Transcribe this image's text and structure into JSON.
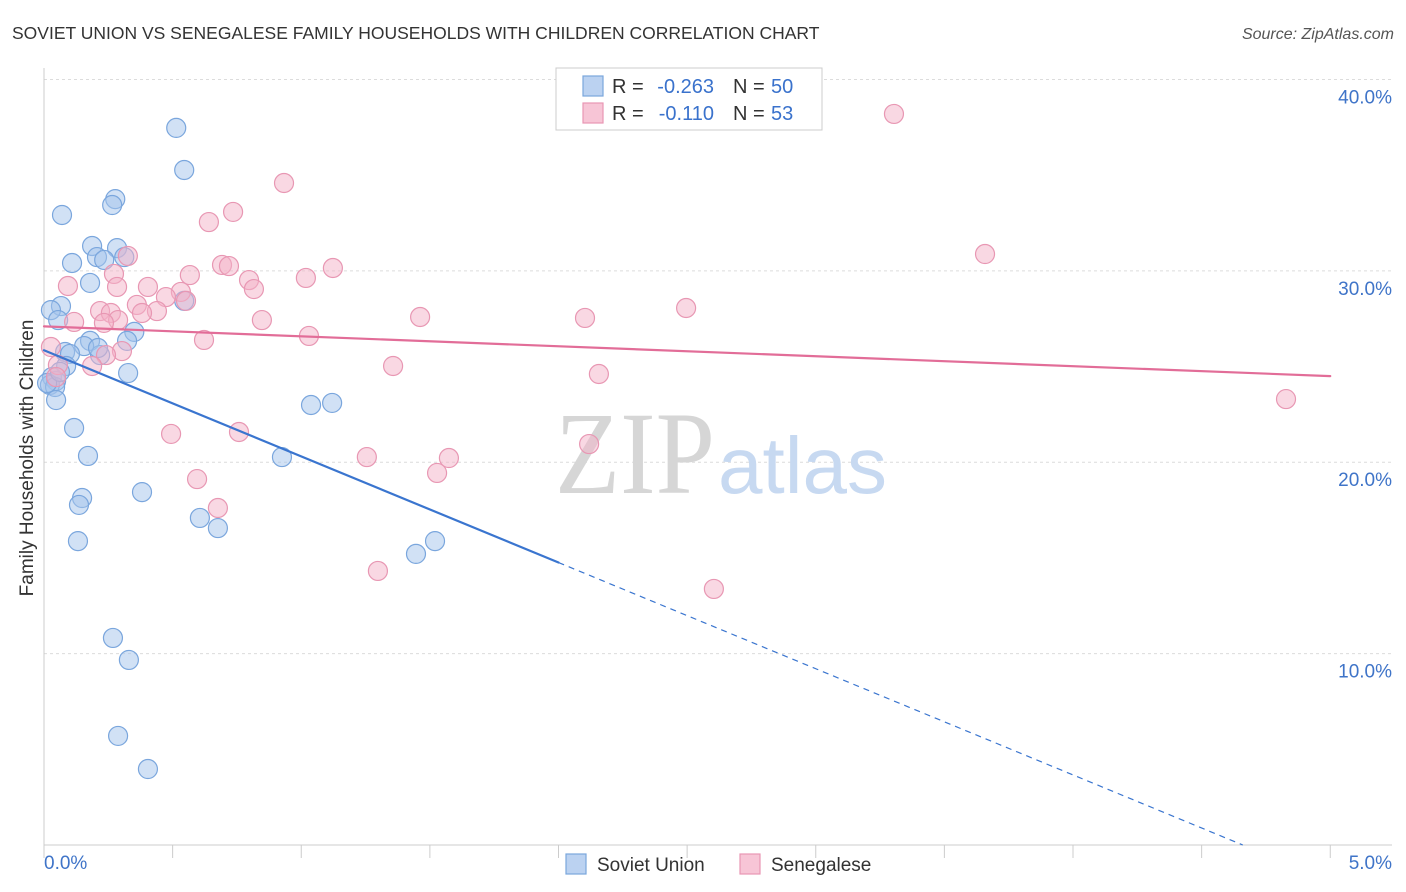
{
  "chart_data": {
    "type": "scatter",
    "title": "SOVIET UNION VS SENEGALESE FAMILY HOUSEHOLDS WITH CHILDREN CORRELATION CHART",
    "source": "Source: ZipAtlas.com",
    "ylabel": "Family Households with Children",
    "xlim": [
      0,
      5.24
    ],
    "ylim": [
      0,
      40.6
    ],
    "grid": true,
    "x_minor_ticks": [
      0,
      0.5,
      1.0,
      1.5,
      2.0,
      2.5,
      3.0,
      3.5,
      4.0,
      4.5,
      5.0
    ],
    "x_tick_labels": [
      {
        "value": 0,
        "label": "0.0%"
      },
      {
        "value": 5.0,
        "label": "5.0%"
      }
    ],
    "y_ticks": [
      {
        "value": 10,
        "label": "10.0%"
      },
      {
        "value": 20,
        "label": "20.0%"
      },
      {
        "value": 30,
        "label": "30.0%"
      },
      {
        "value": 40,
        "label": "40.0%"
      }
    ],
    "legend_stats": [
      {
        "r_label": "R =",
        "r": "-0.263",
        "n_label": "N =",
        "n": "50"
      },
      {
        "r_label": "R =",
        "r": "-0.110",
        "n_label": "N =",
        "n": "53"
      }
    ],
    "series": [
      {
        "name": "Soviet Union",
        "color": "#7aa6dd",
        "fill": "#a4c3ec",
        "trend_color": "#3a75cf",
        "points": [
          [
            0.514,
            37.47
          ],
          [
            0.545,
            35.27
          ],
          [
            0.277,
            33.75
          ],
          [
            0.265,
            33.44
          ],
          [
            0.07,
            32.92
          ],
          [
            0.187,
            31.3
          ],
          [
            0.284,
            31.19
          ],
          [
            0.109,
            30.41
          ],
          [
            0.206,
            30.72
          ],
          [
            0.234,
            30.57
          ],
          [
            0.312,
            30.72
          ],
          [
            0.179,
            29.37
          ],
          [
            0.066,
            28.16
          ],
          [
            0.027,
            27.95
          ],
          [
            0.055,
            27.43
          ],
          [
            0.545,
            28.43
          ],
          [
            0.351,
            26.81
          ],
          [
            0.179,
            26.34
          ],
          [
            0.156,
            26.07
          ],
          [
            0.323,
            26.34
          ],
          [
            0.082,
            25.76
          ],
          [
            0.101,
            25.66
          ],
          [
            0.218,
            25.6
          ],
          [
            0.086,
            25.03
          ],
          [
            0.031,
            24.45
          ],
          [
            0.047,
            24.25
          ],
          [
            0.327,
            24.66
          ],
          [
            0.023,
            24.04
          ],
          [
            0.043,
            23.93
          ],
          [
            0.047,
            23.25
          ],
          [
            1.038,
            22.99
          ],
          [
            1.12,
            23.1
          ],
          [
            0.117,
            21.79
          ],
          [
            0.171,
            20.33
          ],
          [
            0.925,
            20.27
          ],
          [
            0.381,
            18.44
          ],
          [
            0.148,
            18.13
          ],
          [
            0.136,
            17.77
          ],
          [
            0.606,
            17.09
          ],
          [
            0.676,
            16.56
          ],
          [
            0.132,
            15.88
          ],
          [
            1.52,
            15.88
          ],
          [
            1.446,
            15.21
          ],
          [
            0.268,
            10.82
          ],
          [
            0.33,
            9.67
          ],
          [
            0.288,
            5.7
          ],
          [
            0.404,
            3.97
          ],
          [
            0.012,
            24.14
          ],
          [
            0.21,
            25.97
          ],
          [
            0.062,
            24.72
          ]
        ],
        "trend_solid": [
          [
            0,
            25.85
          ],
          [
            2.0,
            14.76
          ]
        ],
        "trend_dashed": [
          [
            2.0,
            14.76
          ],
          [
            4.66,
            0
          ]
        ]
      },
      {
        "name": "Senegalese",
        "color": "#e897b3",
        "fill": "#f4b1c8",
        "trend_color": "#e26d98",
        "points": [
          [
            3.304,
            38.2
          ],
          [
            0.933,
            34.59
          ],
          [
            0.735,
            33.08
          ],
          [
            0.641,
            32.55
          ],
          [
            3.658,
            30.88
          ],
          [
            0.326,
            30.78
          ],
          [
            0.692,
            30.31
          ],
          [
            0.719,
            30.25
          ],
          [
            1.123,
            30.15
          ],
          [
            0.567,
            29.78
          ],
          [
            1.018,
            29.63
          ],
          [
            0.797,
            29.52
          ],
          [
            0.272,
            29.84
          ],
          [
            0.093,
            29.21
          ],
          [
            0.404,
            29.16
          ],
          [
            0.532,
            28.9
          ],
          [
            0.816,
            29.05
          ],
          [
            0.284,
            29.16
          ],
          [
            0.552,
            28.43
          ],
          [
            0.361,
            28.22
          ],
          [
            0.474,
            28.63
          ],
          [
            0.439,
            27.9
          ],
          [
            0.218,
            27.9
          ],
          [
            0.26,
            27.8
          ],
          [
            0.381,
            27.8
          ],
          [
            2.496,
            28.06
          ],
          [
            1.462,
            27.59
          ],
          [
            2.103,
            27.54
          ],
          [
            0.847,
            27.43
          ],
          [
            0.117,
            27.33
          ],
          [
            0.288,
            27.43
          ],
          [
            0.233,
            27.28
          ],
          [
            0.622,
            26.39
          ],
          [
            1.03,
            26.6
          ],
          [
            0.027,
            26.02
          ],
          [
            0.303,
            25.81
          ],
          [
            0.241,
            25.6
          ],
          [
            0.187,
            25.03
          ],
          [
            0.054,
            25.08
          ],
          [
            1.357,
            25.03
          ],
          [
            2.157,
            24.61
          ],
          [
            0.047,
            24.45
          ],
          [
            4.828,
            23.3
          ],
          [
            0.494,
            21.48
          ],
          [
            0.758,
            21.58
          ],
          [
            2.119,
            20.95
          ],
          [
            1.255,
            20.27
          ],
          [
            1.574,
            20.22
          ],
          [
            1.528,
            19.44
          ],
          [
            0.595,
            19.12
          ],
          [
            0.676,
            17.61
          ],
          [
            1.298,
            14.32
          ],
          [
            2.604,
            13.38
          ]
        ],
        "trend_solid": [
          [
            0,
            27.1
          ],
          [
            5.0,
            24.5
          ]
        ]
      }
    ],
    "watermark": {
      "brand_a": "ZIP",
      "brand_b": "atlas"
    }
  }
}
